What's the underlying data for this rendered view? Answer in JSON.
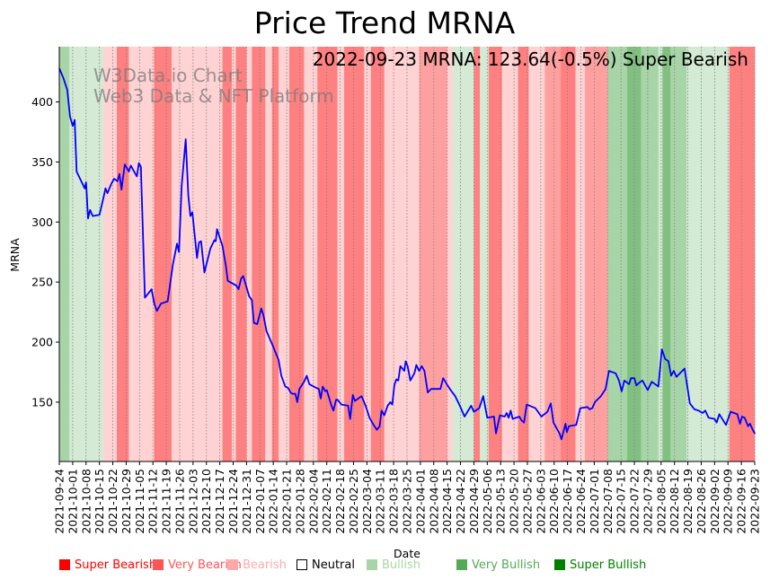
{
  "chart_data": {
    "type": "line",
    "title": "Price Trend MRNA",
    "xlabel": "Date",
    "ylabel": "MRNA",
    "ylim": [
      100.6,
      446
    ],
    "grid": "vertical dotted at each x tick",
    "yticks": [
      150,
      200,
      250,
      300,
      350,
      400
    ],
    "xticks": [
      "2021-09-24",
      "2021-10-01",
      "2021-10-08",
      "2021-10-15",
      "2021-10-22",
      "2021-10-29",
      "2021-11-05",
      "2021-11-12",
      "2021-11-19",
      "2021-11-26",
      "2021-12-03",
      "2021-12-10",
      "2021-12-17",
      "2021-12-24",
      "2021-12-31",
      "2022-01-07",
      "2022-01-14",
      "2022-01-21",
      "2022-01-28",
      "2022-02-04",
      "2022-02-11",
      "2022-02-18",
      "2022-02-25",
      "2022-03-04",
      "2022-03-11",
      "2022-03-18",
      "2022-03-25",
      "2022-04-01",
      "2022-04-08",
      "2022-04-15",
      "2022-04-22",
      "2022-04-29",
      "2022-05-06",
      "2022-05-13",
      "2022-05-20",
      "2022-05-27",
      "2022-06-03",
      "2022-06-10",
      "2022-06-17",
      "2022-06-24",
      "2022-07-01",
      "2022-07-08",
      "2022-07-15",
      "2022-07-22",
      "2022-07-29",
      "2022-08-05",
      "2022-08-12",
      "2022-08-19",
      "2022-08-26",
      "2022-09-02",
      "2022-09-09",
      "2022-09-16",
      "2022-09-23"
    ],
    "annotation": "2022-09-23 MRNA: 123.64(-0.5%) Super Bearish",
    "watermark": [
      "W3Data.io Chart",
      "Web3 Data & NFT Platform"
    ],
    "series": [
      {
        "name": "MRNA",
        "color": "#0000ff",
        "note": "x in weeks since 2021-09-24",
        "points": [
          [
            0,
            428
          ],
          [
            0.3,
            420
          ],
          [
            0.6,
            410
          ],
          [
            0.8,
            388
          ],
          [
            1.0,
            380
          ],
          [
            1.15,
            385
          ],
          [
            1.3,
            342
          ],
          [
            1.6,
            335
          ],
          [
            1.9,
            328
          ],
          [
            2.0,
            333
          ],
          [
            2.15,
            303
          ],
          [
            2.3,
            310
          ],
          [
            2.5,
            305
          ],
          [
            3.0,
            306
          ],
          [
            3.3,
            320
          ],
          [
            3.45,
            328
          ],
          [
            3.6,
            324
          ],
          [
            3.9,
            332
          ],
          [
            4.1,
            336
          ],
          [
            4.35,
            334
          ],
          [
            4.5,
            340
          ],
          [
            4.65,
            327
          ],
          [
            4.9,
            348
          ],
          [
            5.2,
            342
          ],
          [
            5.35,
            347
          ],
          [
            5.8,
            338
          ],
          [
            5.95,
            349
          ],
          [
            6.1,
            346
          ],
          [
            6.4,
            237
          ],
          [
            6.9,
            244
          ],
          [
            7.1,
            232
          ],
          [
            7.3,
            226
          ],
          [
            7.6,
            232
          ],
          [
            8.1,
            234
          ],
          [
            8.5,
            265
          ],
          [
            8.8,
            282
          ],
          [
            8.95,
            275
          ],
          [
            9.15,
            330
          ],
          [
            9.45,
            369
          ],
          [
            9.65,
            322
          ],
          [
            9.8,
            305
          ],
          [
            9.95,
            308
          ],
          [
            10.3,
            270
          ],
          [
            10.45,
            283
          ],
          [
            10.6,
            284
          ],
          [
            10.85,
            258
          ],
          [
            11.3,
            278
          ],
          [
            11.6,
            285
          ],
          [
            11.7,
            284
          ],
          [
            11.8,
            294
          ],
          [
            12.2,
            280
          ],
          [
            12.45,
            264
          ],
          [
            12.6,
            251
          ],
          [
            13.25,
            247
          ],
          [
            13.4,
            244
          ],
          [
            13.6,
            253
          ],
          [
            13.75,
            255
          ],
          [
            14.2,
            238
          ],
          [
            14.4,
            235
          ],
          [
            14.55,
            216
          ],
          [
            14.8,
            215
          ],
          [
            15.1,
            228
          ],
          [
            15.25,
            223
          ],
          [
            15.5,
            209
          ],
          [
            16.0,
            196
          ],
          [
            16.4,
            185
          ],
          [
            16.6,
            172
          ],
          [
            16.9,
            163
          ],
          [
            17.1,
            162
          ],
          [
            17.3,
            158
          ],
          [
            17.45,
            157
          ],
          [
            17.65,
            157
          ],
          [
            17.8,
            150
          ],
          [
            17.95,
            161
          ],
          [
            18.3,
            167
          ],
          [
            18.5,
            172
          ],
          [
            18.7,
            165
          ],
          [
            19.2,
            162
          ],
          [
            19.4,
            161
          ],
          [
            19.55,
            153
          ],
          [
            19.7,
            163
          ],
          [
            19.9,
            159
          ],
          [
            20.0,
            160
          ],
          [
            20.35,
            147
          ],
          [
            20.5,
            143
          ],
          [
            20.7,
            152
          ],
          [
            20.8,
            152
          ],
          [
            21.1,
            148
          ],
          [
            21.6,
            147
          ],
          [
            21.75,
            136
          ],
          [
            21.95,
            156
          ],
          [
            22.1,
            151
          ],
          [
            22.6,
            155
          ],
          [
            22.9,
            147
          ],
          [
            23.2,
            137
          ],
          [
            23.5,
            131
          ],
          [
            23.75,
            127
          ],
          [
            23.95,
            130
          ],
          [
            24.1,
            143
          ],
          [
            24.3,
            139
          ],
          [
            24.55,
            147
          ],
          [
            24.75,
            150
          ],
          [
            24.9,
            148
          ],
          [
            25.05,
            164
          ],
          [
            25.2,
            169
          ],
          [
            25.35,
            168
          ],
          [
            25.5,
            180
          ],
          [
            25.8,
            176
          ],
          [
            25.9,
            184
          ],
          [
            26.05,
            180
          ],
          [
            26.25,
            168
          ],
          [
            26.55,
            174
          ],
          [
            26.7,
            181
          ],
          [
            26.9,
            176
          ],
          [
            27.1,
            180
          ],
          [
            27.3,
            176
          ],
          [
            27.55,
            158
          ],
          [
            27.8,
            161
          ],
          [
            28.5,
            161
          ],
          [
            28.7,
            170
          ],
          [
            29.2,
            161
          ],
          [
            29.6,
            155
          ],
          [
            29.95,
            147
          ],
          [
            30.3,
            138
          ],
          [
            30.8,
            147
          ],
          [
            31.0,
            142
          ],
          [
            31.4,
            145
          ],
          [
            31.7,
            155
          ],
          [
            32.0,
            137
          ],
          [
            32.5,
            138
          ],
          [
            32.65,
            124
          ],
          [
            32.95,
            139
          ],
          [
            33.3,
            138
          ],
          [
            33.45,
            141
          ],
          [
            33.6,
            137
          ],
          [
            33.75,
            143
          ],
          [
            33.9,
            136
          ],
          [
            34.4,
            138
          ],
          [
            34.55,
            135
          ],
          [
            34.75,
            133
          ],
          [
            34.95,
            148
          ],
          [
            35.6,
            145
          ],
          [
            36.05,
            138
          ],
          [
            36.5,
            142
          ],
          [
            36.75,
            149
          ],
          [
            36.95,
            133
          ],
          [
            37.4,
            124
          ],
          [
            37.55,
            119
          ],
          [
            37.85,
            132
          ],
          [
            37.95,
            125
          ],
          [
            38.1,
            130
          ],
          [
            38.65,
            131
          ],
          [
            38.95,
            145
          ],
          [
            39.5,
            146
          ],
          [
            39.65,
            144
          ],
          [
            39.85,
            145
          ],
          [
            40.05,
            150
          ],
          [
            40.5,
            155
          ],
          [
            40.85,
            161
          ],
          [
            41.1,
            176
          ],
          [
            41.6,
            174
          ],
          [
            41.85,
            168
          ],
          [
            42.05,
            159
          ],
          [
            42.25,
            168
          ],
          [
            42.6,
            165
          ],
          [
            42.75,
            170
          ],
          [
            43.0,
            170
          ],
          [
            43.15,
            164
          ],
          [
            43.35,
            166
          ],
          [
            43.6,
            168
          ],
          [
            44.0,
            160
          ],
          [
            44.3,
            167
          ],
          [
            44.8,
            163
          ],
          [
            45.05,
            194
          ],
          [
            45.3,
            186
          ],
          [
            45.55,
            184
          ],
          [
            45.75,
            172
          ],
          [
            45.95,
            176
          ],
          [
            46.15,
            171
          ],
          [
            46.75,
            178
          ],
          [
            47.15,
            149
          ],
          [
            47.5,
            144
          ],
          [
            47.8,
            143
          ],
          [
            48.1,
            141
          ],
          [
            48.3,
            143
          ],
          [
            48.55,
            137
          ],
          [
            49.0,
            136
          ],
          [
            49.15,
            133
          ],
          [
            49.35,
            140
          ],
          [
            49.85,
            131
          ],
          [
            50.2,
            142
          ],
          [
            50.7,
            140
          ],
          [
            50.9,
            132
          ],
          [
            51.05,
            138
          ],
          [
            51.25,
            137
          ],
          [
            51.5,
            130
          ],
          [
            51.65,
            132
          ],
          [
            51.85,
            127
          ],
          [
            52.0,
            124
          ],
          [
            52.3,
            123.64
          ]
        ]
      }
    ],
    "bands_note": "background sentiment bands; start/end in weeks since 2021-09-24; level -3..3",
    "bands": [
      [
        0,
        0.75,
        2
      ],
      [
        0.75,
        3.3,
        1
      ],
      [
        3.3,
        4.3,
        -1
      ],
      [
        4.3,
        5.2,
        -2
      ],
      [
        5.2,
        6.3,
        -1
      ],
      [
        6.3,
        7.1,
        -1
      ],
      [
        7.1,
        7.2,
        -3
      ],
      [
        7.2,
        8.4,
        -2
      ],
      [
        8.4,
        9.3,
        -1
      ],
      [
        9.3,
        10.6,
        -1
      ],
      [
        10.6,
        11.6,
        -1
      ],
      [
        11.6,
        12.2,
        -1
      ],
      [
        12.2,
        12.9,
        -2
      ],
      [
        12.9,
        13.2,
        -1
      ],
      [
        13.2,
        14.0,
        -2
      ],
      [
        14.0,
        14.4,
        -1
      ],
      [
        14.4,
        15.4,
        -2
      ],
      [
        15.4,
        15.9,
        -1
      ],
      [
        15.9,
        16.4,
        -2
      ],
      [
        16.4,
        17.2,
        -1
      ],
      [
        17.2,
        18.3,
        -2
      ],
      [
        18.3,
        19.3,
        -1
      ],
      [
        19.3,
        20.8,
        -2
      ],
      [
        20.8,
        21.3,
        -1
      ],
      [
        21.3,
        22.8,
        -2
      ],
      [
        22.8,
        23.3,
        -1
      ],
      [
        23.3,
        24.3,
        -2
      ],
      [
        24.3,
        25.0,
        -1
      ],
      [
        25.0,
        26.9,
        0.5
      ],
      [
        26.9,
        29.0,
        -1.5
      ],
      [
        29.0,
        29.4,
        -1
      ],
      [
        29.4,
        31.0,
        1
      ],
      [
        31.0,
        31.45,
        -2
      ],
      [
        31.45,
        32.1,
        1
      ],
      [
        32.1,
        33.1,
        -2
      ],
      [
        33.1,
        34.3,
        -1
      ],
      [
        34.3,
        35.1,
        -2
      ],
      [
        35.1,
        36.3,
        -1
      ],
      [
        36.3,
        37.5,
        -1.5
      ],
      [
        37.5,
        38.6,
        -2
      ],
      [
        38.6,
        39.3,
        -1
      ],
      [
        39.3,
        40.6,
        -1.5
      ],
      [
        40.6,
        41.0,
        -1.5
      ],
      [
        41.0,
        41.25,
        2
      ],
      [
        41.25,
        42.45,
        2
      ],
      [
        42.45,
        43.5,
        3
      ],
      [
        43.5,
        44.8,
        2
      ],
      [
        44.8,
        45.1,
        1
      ],
      [
        45.1,
        45.7,
        3
      ],
      [
        45.7,
        46.9,
        2
      ],
      [
        46.9,
        47.5,
        1
      ],
      [
        47.5,
        50.1,
        1
      ],
      [
        50.1,
        52.3,
        -2
      ]
    ],
    "legend": [
      {
        "label": "Super Bearish",
        "color": "#ff0000"
      },
      {
        "label": "Very Bearish",
        "color": "#ff5555"
      },
      {
        "label": "Bearish",
        "color": "#ffaaaa"
      },
      {
        "label": "Neutral",
        "color": "#ffffff"
      },
      {
        "label": "Bullish",
        "color": "#a8d5a8"
      },
      {
        "label": "Very Bullish",
        "color": "#55aa55"
      },
      {
        "label": "Super Bullish",
        "color": "#008000"
      }
    ],
    "band_colors": {
      "-3": "#ff7070",
      "-2": "#ff8080",
      "-1.5": "#ffa0a0",
      "-1": "#ffd3d3",
      "0.5": "#ffd3d3",
      "1": "#d4ead4",
      "2": "#a8d5a8",
      "3": "#82c082"
    }
  }
}
